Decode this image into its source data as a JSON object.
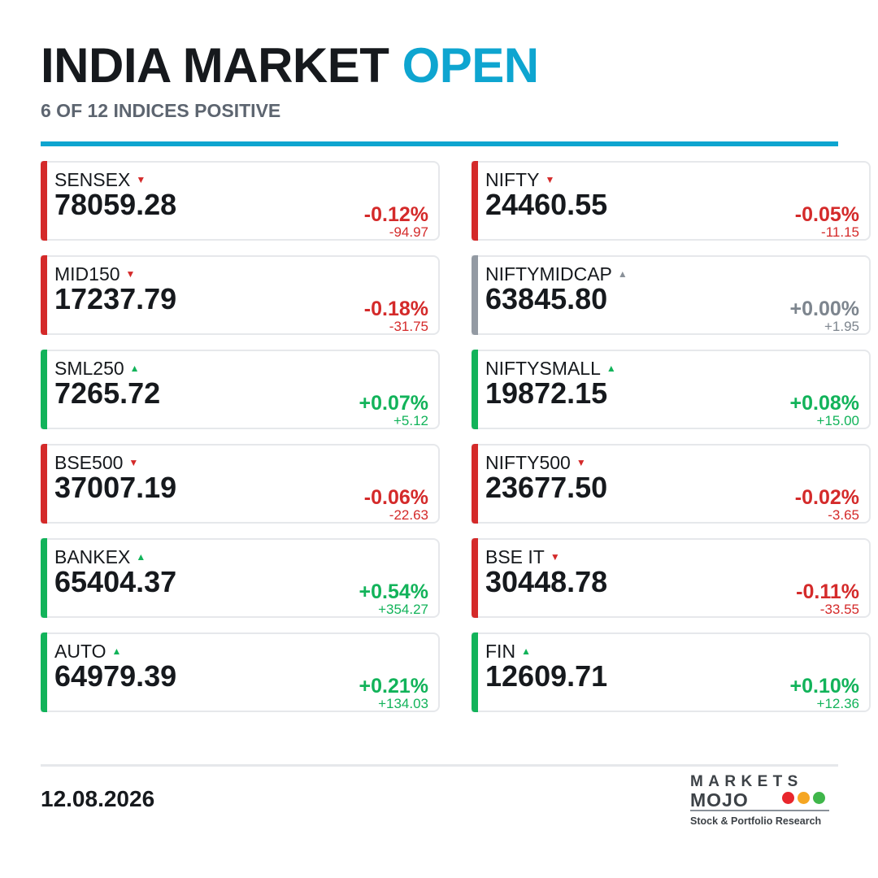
{
  "header": {
    "title_main": "INDIA MARKET",
    "title_status": "OPEN",
    "subtitle": "6 OF 12 INDICES POSITIVE"
  },
  "colors": {
    "accent": "#0ea5d0",
    "down": "#d42a2a",
    "up": "#12b35a",
    "flat": "#939aa3"
  },
  "indices": [
    {
      "name": "SENSEX",
      "value": "78059.28",
      "pct": "-0.12%",
      "change": "-94.97",
      "trend": "down",
      "arrow": "▼"
    },
    {
      "name": "NIFTY",
      "value": "24460.55",
      "pct": "-0.05%",
      "change": "-11.15",
      "trend": "down",
      "arrow": "▼"
    },
    {
      "name": "MID150",
      "value": "17237.79",
      "pct": "-0.18%",
      "change": "-31.75",
      "trend": "down",
      "arrow": "▼"
    },
    {
      "name": "NIFTYMIDCAP",
      "value": "63845.80",
      "pct": "+0.00%",
      "change": "+1.95",
      "trend": "flat",
      "arrow": "▲"
    },
    {
      "name": "SML250",
      "value": "7265.72",
      "pct": "+0.07%",
      "change": "+5.12",
      "trend": "up",
      "arrow": "▲"
    },
    {
      "name": "NIFTYSMALL",
      "value": "19872.15",
      "pct": "+0.08%",
      "change": "+15.00",
      "trend": "up",
      "arrow": "▲"
    },
    {
      "name": "BSE500",
      "value": "37007.19",
      "pct": "-0.06%",
      "change": "-22.63",
      "trend": "down",
      "arrow": "▼"
    },
    {
      "name": "NIFTY500",
      "value": "23677.50",
      "pct": "-0.02%",
      "change": "-3.65",
      "trend": "down",
      "arrow": "▼"
    },
    {
      "name": "BANKEX",
      "value": "65404.37",
      "pct": "+0.54%",
      "change": "+354.27",
      "trend": "up",
      "arrow": "▲"
    },
    {
      "name": "BSE IT",
      "value": "30448.78",
      "pct": "-0.11%",
      "change": "-33.55",
      "trend": "down",
      "arrow": "▼"
    },
    {
      "name": "AUTO",
      "value": "64979.39",
      "pct": "+0.21%",
      "change": "+134.03",
      "trend": "up",
      "arrow": "▲"
    },
    {
      "name": "FIN",
      "value": "12609.71",
      "pct": "+0.10%",
      "change": "+12.36",
      "trend": "up",
      "arrow": "▲"
    }
  ],
  "footer": {
    "date": "12.08.2026",
    "logo_line1": "MARKETS",
    "logo_line2": "MOJO",
    "logo_tagline": "Stock & Portfolio Research",
    "logo_dot_colors": [
      "#e8262c",
      "#f5a623",
      "#3fb64a"
    ]
  }
}
